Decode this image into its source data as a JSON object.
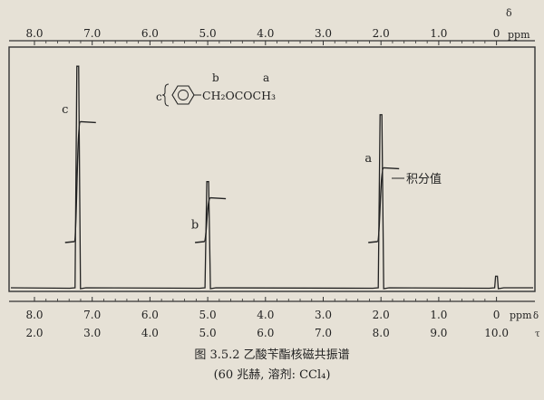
{
  "chart_data": {
    "type": "line",
    "x_axis": {
      "top_ticks": [
        "8.0",
        "7.0",
        "6.0",
        "5.0",
        "4.0",
        "3.0",
        "2.0",
        "1.0",
        "0"
      ],
      "top_unit": "ppm",
      "top_delta_label": "δ",
      "bottom_delta_ticks": [
        "8.0",
        "7.0",
        "6.0",
        "5.0",
        "4.0",
        "3.0",
        "2.0",
        "1.0",
        "0"
      ],
      "bottom_tau_ticks": [
        "2.0",
        "3.0",
        "4.0",
        "5.0",
        "6.0",
        "7.0",
        "8.0",
        "9.0",
        "10.0"
      ],
      "bottom_unit": "ppm",
      "delta_symbol": "δ",
      "tau_symbol": "τ",
      "range_ppm": [
        8.2,
        0
      ]
    },
    "peaks": [
      {
        "label": "c",
        "x": 7.25,
        "height": 0.96
      },
      {
        "label": "b",
        "x": 5.0,
        "height": 0.46
      },
      {
        "label": "a",
        "x": 2.0,
        "height": 0.75
      },
      {
        "label": "",
        "x": 0.0,
        "height": 0.05
      }
    ],
    "integral_steps": [
      {
        "x": 7.25,
        "low": 0.2,
        "high": 0.72
      },
      {
        "x": 5.0,
        "low": 0.2,
        "high": 0.39
      },
      {
        "x": 2.0,
        "low": 0.2,
        "high": 0.52
      }
    ],
    "structure": {
      "ring_label": "c",
      "label_b": "b",
      "label_a": "a",
      "formula": "CH₂OCOCH₃"
    },
    "annotation": "积分值"
  },
  "caption": {
    "line1": "图 3.5.2   乙酸苄酯核磁共振谱",
    "line2": "(60 兆赫, 溶剂: CCl₄)"
  }
}
